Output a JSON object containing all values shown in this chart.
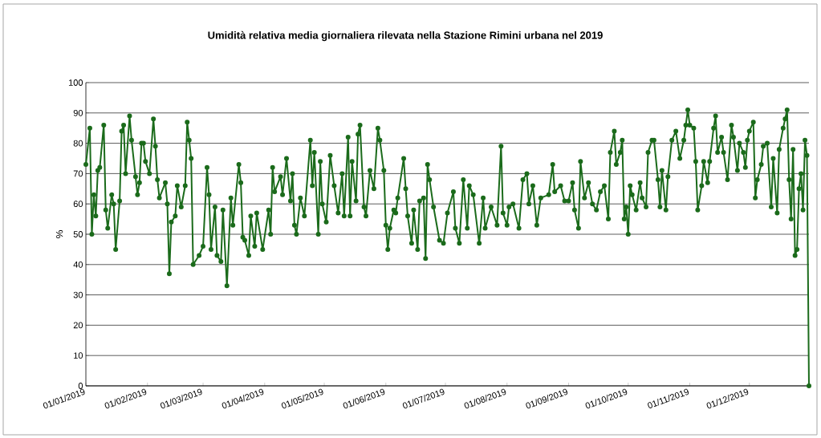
{
  "chart_data": {
    "type": "line",
    "title": "Umidità relativa media giornaliera rilevata nella Stazione Rimini urbana nel 2019",
    "ylabel": "%",
    "xlim": [
      "2019-01-01",
      "2019-12-31"
    ],
    "ylim": [
      0,
      100
    ],
    "yticks": [
      0,
      10,
      20,
      30,
      40,
      50,
      60,
      70,
      80,
      90,
      100
    ],
    "xticks": [
      {
        "value": "2019-01-01",
        "label": "01/01/2019"
      },
      {
        "value": "2019-02-01",
        "label": "01/02/2019"
      },
      {
        "value": "2019-03-01",
        "label": "01/03/2019"
      },
      {
        "value": "2019-04-01",
        "label": "01/04/2019"
      },
      {
        "value": "2019-05-01",
        "label": "01/05/2019"
      },
      {
        "value": "2019-06-01",
        "label": "01/06/2019"
      },
      {
        "value": "2019-07-01",
        "label": "01/07/2019"
      },
      {
        "value": "2019-08-01",
        "label": "01/08/2019"
      },
      {
        "value": "2019-09-01",
        "label": "01/09/2019"
      },
      {
        "value": "2019-10-01",
        "label": "01/10/2019"
      },
      {
        "value": "2019-11-01",
        "label": "01/11/2019"
      },
      {
        "value": "2019-12-01",
        "label": "01/12/2019"
      }
    ],
    "grid": "y",
    "marker": "circle",
    "line_style": "solid",
    "series": [
      {
        "color": "#1b6b1b",
        "x": [
          "2019-01-01",
          "2019-01-03",
          "2019-01-04",
          "2019-01-05",
          "2019-01-06",
          "2019-01-07",
          "2019-01-08",
          "2019-01-10",
          "2019-01-11",
          "2019-01-12",
          "2019-01-14",
          "2019-01-15",
          "2019-01-16",
          "2019-01-18",
          "2019-01-19",
          "2019-01-20",
          "2019-01-21",
          "2019-01-23",
          "2019-01-24",
          "2019-01-26",
          "2019-01-27",
          "2019-01-28",
          "2019-01-29",
          "2019-01-30",
          "2019-01-31",
          "2019-02-02",
          "2019-02-04",
          "2019-02-05",
          "2019-02-06",
          "2019-02-07",
          "2019-02-10",
          "2019-02-11",
          "2019-02-12",
          "2019-02-13",
          "2019-02-15",
          "2019-02-16",
          "2019-02-18",
          "2019-02-20",
          "2019-02-21",
          "2019-02-22",
          "2019-02-23",
          "2019-02-24",
          "2019-02-27",
          "2019-03-01",
          "2019-03-03",
          "2019-03-04",
          "2019-03-05",
          "2019-03-07",
          "2019-03-08",
          "2019-03-10",
          "2019-03-11",
          "2019-03-13",
          "2019-03-15",
          "2019-03-16",
          "2019-03-19",
          "2019-03-20",
          "2019-03-21",
          "2019-03-22",
          "2019-03-24",
          "2019-03-25",
          "2019-03-27",
          "2019-03-28",
          "2019-03-31",
          "2019-04-03",
          "2019-04-04",
          "2019-04-05",
          "2019-04-06",
          "2019-04-09",
          "2019-04-10",
          "2019-04-12",
          "2019-04-14",
          "2019-04-15",
          "2019-04-16",
          "2019-04-17",
          "2019-04-19",
          "2019-04-21",
          "2019-04-24",
          "2019-04-25",
          "2019-04-26",
          "2019-04-28",
          "2019-04-29",
          "2019-04-30",
          "2019-05-02",
          "2019-05-04",
          "2019-05-06",
          "2019-05-08",
          "2019-05-10",
          "2019-05-11",
          "2019-05-13",
          "2019-05-14",
          "2019-05-15",
          "2019-05-17",
          "2019-05-18",
          "2019-05-19",
          "2019-05-21",
          "2019-05-22",
          "2019-05-24",
          "2019-05-26",
          "2019-05-28",
          "2019-05-29",
          "2019-05-31",
          "2019-06-01",
          "2019-06-02",
          "2019-06-03",
          "2019-06-05",
          "2019-06-06",
          "2019-06-07",
          "2019-06-10",
          "2019-06-11",
          "2019-06-12",
          "2019-06-14",
          "2019-06-15",
          "2019-06-17",
          "2019-06-18",
          "2019-06-20",
          "2019-06-21",
          "2019-06-22",
          "2019-06-23",
          "2019-06-25",
          "2019-06-28",
          "2019-06-30",
          "2019-07-02",
          "2019-07-05",
          "2019-07-06",
          "2019-07-08",
          "2019-07-10",
          "2019-07-12",
          "2019-07-13",
          "2019-07-15",
          "2019-07-18",
          "2019-07-20",
          "2019-07-21",
          "2019-07-24",
          "2019-07-27",
          "2019-07-29",
          "2019-07-30",
          "2019-08-01",
          "2019-08-02",
          "2019-08-04",
          "2019-08-07",
          "2019-08-09",
          "2019-08-11",
          "2019-08-12",
          "2019-08-14",
          "2019-08-16",
          "2019-08-18",
          "2019-08-22",
          "2019-08-24",
          "2019-08-25",
          "2019-08-28",
          "2019-08-30",
          "2019-09-01",
          "2019-09-03",
          "2019-09-04",
          "2019-09-06",
          "2019-09-07",
          "2019-09-09",
          "2019-09-11",
          "2019-09-13",
          "2019-09-15",
          "2019-09-17",
          "2019-09-19",
          "2019-09-21",
          "2019-09-22",
          "2019-09-24",
          "2019-09-25",
          "2019-09-27",
          "2019-09-28",
          "2019-09-29",
          "2019-09-30",
          "2019-10-01",
          "2019-10-02",
          "2019-10-03",
          "2019-10-05",
          "2019-10-07",
          "2019-10-08",
          "2019-10-10",
          "2019-10-11",
          "2019-10-13",
          "2019-10-14",
          "2019-10-16",
          "2019-10-17",
          "2019-10-18",
          "2019-10-20",
          "2019-10-21",
          "2019-10-23",
          "2019-10-25",
          "2019-10-27",
          "2019-10-29",
          "2019-10-30",
          "2019-10-31",
          "2019-11-01",
          "2019-11-03",
          "2019-11-04",
          "2019-11-05",
          "2019-11-07",
          "2019-11-08",
          "2019-11-10",
          "2019-11-11",
          "2019-11-13",
          "2019-11-14",
          "2019-11-15",
          "2019-11-17",
          "2019-11-18",
          "2019-11-20",
          "2019-11-22",
          "2019-11-23",
          "2019-11-25",
          "2019-11-26",
          "2019-11-28",
          "2019-11-29",
          "2019-11-30",
          "2019-12-01",
          "2019-12-03",
          "2019-12-04",
          "2019-12-05",
          "2019-12-07",
          "2019-12-08",
          "2019-12-10",
          "2019-12-12",
          "2019-12-13",
          "2019-12-15",
          "2019-12-16",
          "2019-12-18",
          "2019-12-19",
          "2019-12-20",
          "2019-12-21",
          "2019-12-22",
          "2019-12-23",
          "2019-12-24",
          "2019-12-25",
          "2019-12-26",
          "2019-12-27",
          "2019-12-28",
          "2019-12-29",
          "2019-12-30",
          "2019-12-31"
        ],
        "values": [
          73,
          85,
          50,
          63,
          56,
          71,
          72,
          86,
          58,
          52,
          63,
          60,
          45,
          61,
          84,
          86,
          70,
          89,
          81,
          69,
          63,
          67,
          80,
          80,
          74,
          70,
          88,
          79,
          68,
          62,
          67,
          60,
          37,
          54,
          56,
          66,
          59,
          66,
          87,
          81,
          75,
          40,
          43,
          46,
          72,
          63,
          45,
          59,
          43,
          41,
          58,
          33,
          62,
          53,
          73,
          67,
          49,
          48,
          43,
          56,
          46,
          57,
          45,
          58,
          50,
          72,
          64,
          69,
          63,
          75,
          61,
          70,
          53,
          50,
          62,
          56,
          81,
          66,
          77,
          50,
          74,
          60,
          54,
          76,
          66,
          57,
          70,
          56,
          82,
          56,
          74,
          61,
          83,
          86,
          59,
          56,
          71,
          65,
          85,
          81,
          71,
          53,
          45,
          52,
          58,
          57,
          62,
          75,
          65,
          56,
          47,
          58,
          45,
          61,
          62,
          42,
          73,
          68,
          59,
          48,
          47,
          57,
          64,
          52,
          47,
          68,
          52,
          66,
          63,
          47,
          62,
          52,
          59,
          53,
          79,
          57,
          53,
          59,
          60,
          52,
          68,
          70,
          60,
          66,
          53,
          62,
          63,
          73,
          64,
          66,
          61,
          61,
          67,
          58,
          52,
          74,
          62,
          67,
          60,
          58,
          64,
          66,
          55,
          77,
          84,
          73,
          77,
          81,
          55,
          59,
          50,
          66,
          63,
          58,
          67,
          62,
          59,
          77,
          81,
          81,
          68,
          59,
          71,
          58,
          69,
          81,
          84,
          75,
          81,
          86,
          91,
          86,
          85,
          74,
          58,
          66,
          74,
          67,
          74,
          85,
          89,
          77,
          82,
          77,
          68,
          86,
          82,
          71,
          80,
          77,
          72,
          81,
          84,
          87,
          62,
          68,
          73,
          79,
          80,
          59,
          75,
          57,
          78,
          85,
          88,
          91,
          68,
          55,
          78,
          43,
          45,
          65,
          70,
          58,
          81,
          76,
          0
        ]
      }
    ]
  }
}
